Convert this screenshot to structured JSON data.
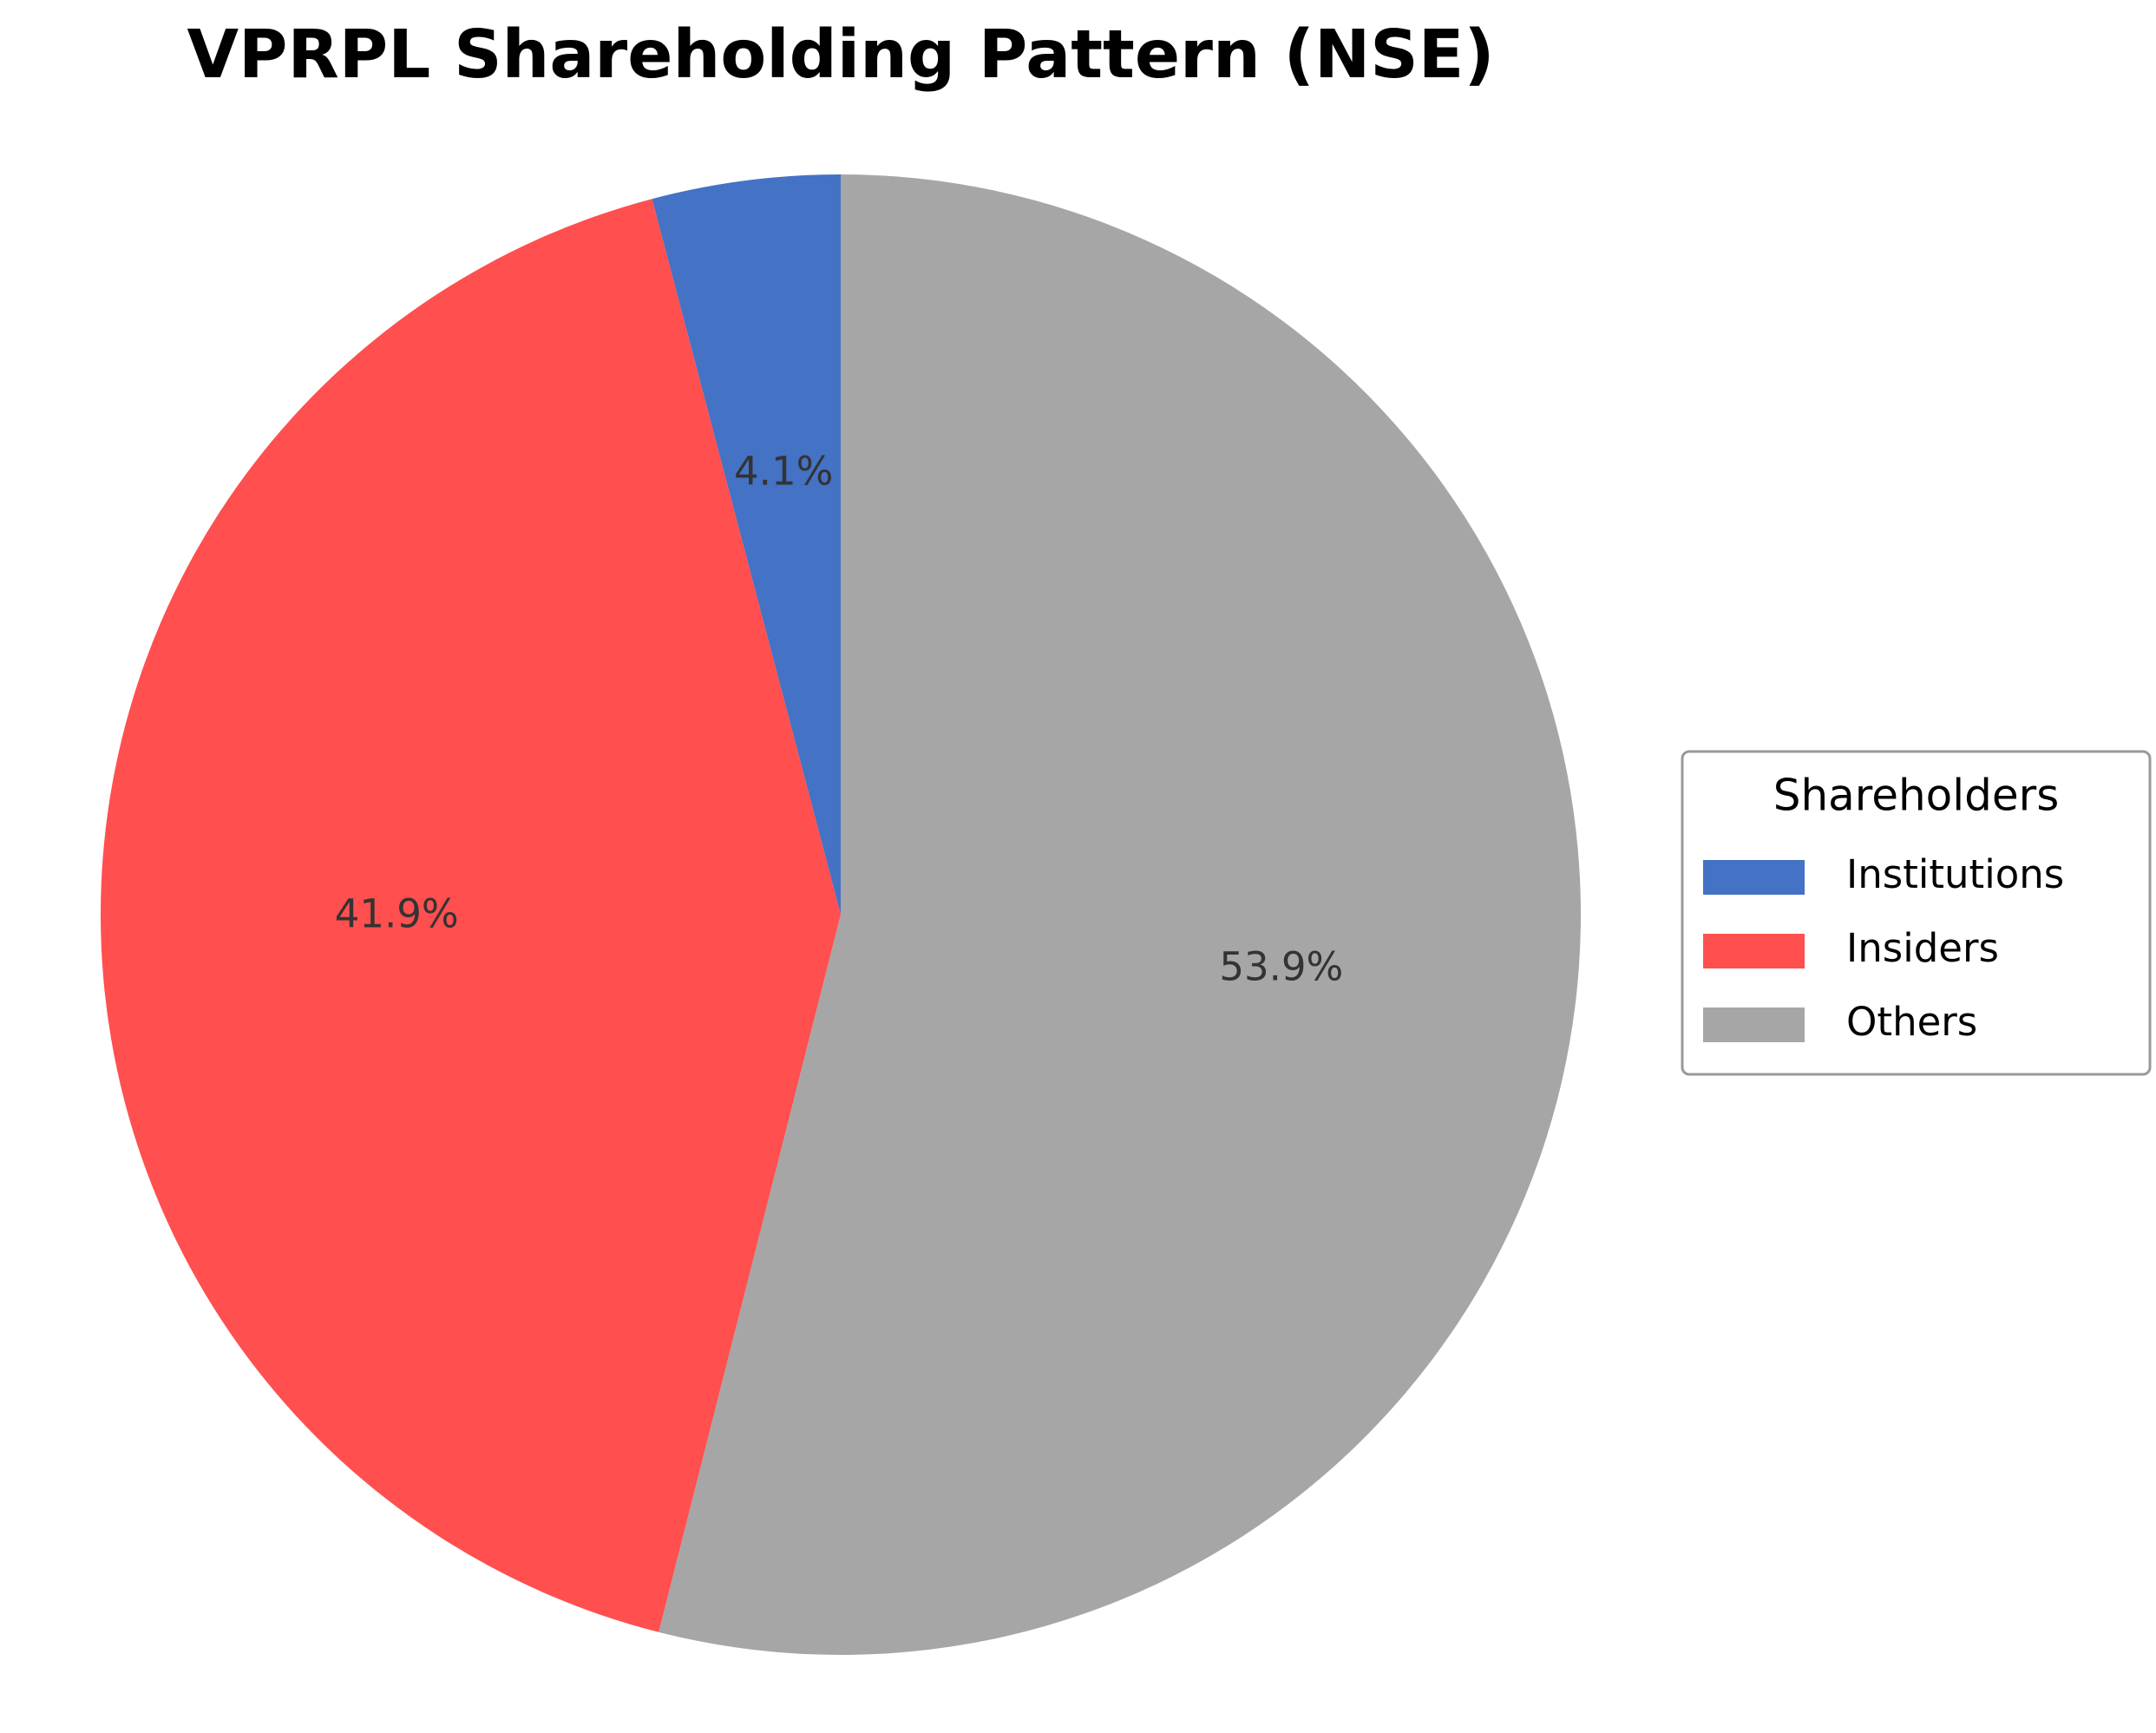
{
  "chart_data": {
    "type": "pie",
    "title": "VPRPL Shareholding Pattern (NSE)",
    "categories": [
      "Institutions",
      "Insiders",
      "Others"
    ],
    "values": [
      4.1,
      41.9,
      53.9
    ],
    "value_labels": [
      "4.1%",
      "41.9%",
      "53.9%"
    ],
    "colors": [
      "#4472c4",
      "#ff4f4f",
      "#a6a6a6"
    ],
    "legend_title": "Shareholders",
    "legend": "right"
  }
}
